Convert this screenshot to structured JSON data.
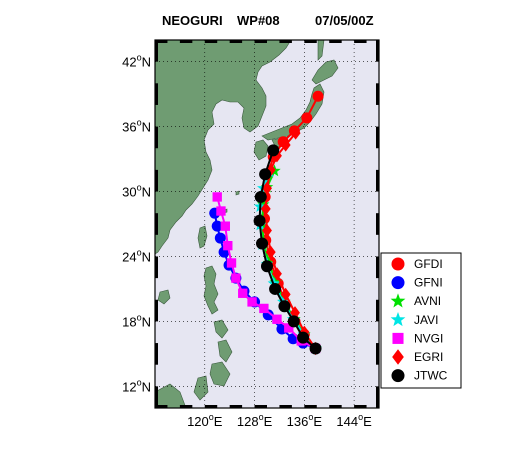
{
  "title": {
    "storm": "NEOGURI",
    "advisory": "WP#08",
    "datetime": "07/05/00Z"
  },
  "colors": {
    "ocean": "#e6e6f2",
    "land": "#6f9c72",
    "frame": "#000000"
  },
  "map": {
    "lon_range": [
      112,
      148
    ],
    "lat_range": [
      10,
      44
    ],
    "lon_ticks": [
      {
        "value": 120,
        "deg": "120",
        "hemi": "E"
      },
      {
        "value": 128,
        "deg": "128",
        "hemi": "E"
      },
      {
        "value": 136,
        "deg": "136",
        "hemi": "E"
      },
      {
        "value": 144,
        "deg": "144",
        "hemi": "E"
      }
    ],
    "lat_ticks": [
      {
        "value": 12,
        "deg": "12",
        "hemi": "N"
      },
      {
        "value": 18,
        "deg": "18",
        "hemi": "N"
      },
      {
        "value": 24,
        "deg": "24",
        "hemi": "N"
      },
      {
        "value": 30,
        "deg": "30",
        "hemi": "N"
      },
      {
        "value": 36,
        "deg": "36",
        "hemi": "N"
      },
      {
        "value": 42,
        "deg": "42",
        "hemi": "N"
      }
    ],
    "grid": "dotted"
  },
  "chart_data": {
    "type": "line",
    "xlabel": "",
    "ylabel": "",
    "xlim": [
      112,
      148
    ],
    "ylim": [
      10,
      44
    ],
    "series": [
      {
        "name": "GFDI",
        "color": "#ff0000",
        "marker": "circle",
        "points": [
          [
            137.8,
            15.5
          ],
          [
            136.0,
            16.8
          ],
          [
            134.5,
            18.0
          ],
          [
            133.0,
            19.6
          ],
          [
            131.8,
            21.5
          ],
          [
            130.6,
            23.5
          ],
          [
            129.8,
            25.5
          ],
          [
            129.6,
            27.5
          ],
          [
            129.7,
            29.5
          ],
          [
            130.1,
            31.5
          ],
          [
            131.0,
            33.2
          ],
          [
            132.6,
            34.6
          ],
          [
            134.4,
            35.6
          ],
          [
            136.4,
            36.8
          ],
          [
            138.2,
            38.8
          ]
        ]
      },
      {
        "name": "GFNI",
        "color": "#0000ff",
        "marker": "circle",
        "points": [
          [
            137.8,
            15.5
          ],
          [
            135.8,
            16.0
          ],
          [
            134.2,
            16.4
          ],
          [
            132.4,
            17.3
          ],
          [
            130.2,
            18.6
          ],
          [
            128.0,
            19.8
          ],
          [
            126.3,
            20.8
          ],
          [
            125.0,
            22.0
          ],
          [
            123.9,
            23.2
          ],
          [
            123.1,
            24.4
          ],
          [
            122.5,
            25.7
          ],
          [
            122.0,
            26.8
          ],
          [
            121.6,
            28.0
          ]
        ]
      },
      {
        "name": "AVNI",
        "color": "#00e000",
        "marker": "star",
        "points": [
          [
            137.8,
            15.5
          ],
          [
            136.0,
            16.8
          ],
          [
            134.4,
            18.2
          ],
          [
            132.8,
            19.8
          ],
          [
            131.4,
            21.6
          ],
          [
            130.3,
            23.4
          ],
          [
            129.5,
            25.2
          ],
          [
            129.2,
            27.0
          ],
          [
            129.4,
            28.8
          ],
          [
            130.0,
            30.4
          ],
          [
            131.2,
            31.9
          ]
        ]
      },
      {
        "name": "JAVI",
        "color": "#00e5e5",
        "marker": "star",
        "points": [
          [
            137.8,
            15.5
          ],
          [
            135.9,
            16.8
          ],
          [
            134.2,
            18.2
          ],
          [
            132.6,
            19.8
          ],
          [
            131.1,
            21.5
          ],
          [
            130.0,
            23.3
          ],
          [
            129.2,
            25.1
          ],
          [
            128.9,
            26.9
          ],
          [
            128.9,
            28.6
          ],
          [
            129.4,
            30.3
          ],
          [
            130.4,
            31.8
          ]
        ]
      },
      {
        "name": "NVGI",
        "color": "#ff00ff",
        "marker": "square",
        "points": [
          [
            137.8,
            15.5
          ],
          [
            135.5,
            16.2
          ],
          [
            133.5,
            17.4
          ],
          [
            131.6,
            18.2
          ],
          [
            129.5,
            19.2
          ],
          [
            127.6,
            19.8
          ],
          [
            126.1,
            20.6
          ],
          [
            125.0,
            22.0
          ],
          [
            124.3,
            23.4
          ],
          [
            123.7,
            25.0
          ],
          [
            123.3,
            26.8
          ],
          [
            122.6,
            28.2
          ],
          [
            122.0,
            29.5
          ]
        ]
      },
      {
        "name": "EGRI",
        "color": "#ff0000",
        "marker": "diamond",
        "points": [
          [
            137.8,
            15.5
          ],
          [
            136.0,
            17.0
          ],
          [
            134.5,
            18.8
          ],
          [
            133.0,
            20.5
          ],
          [
            131.6,
            22.4
          ],
          [
            130.6,
            24.4
          ],
          [
            130.0,
            26.4
          ],
          [
            129.8,
            28.4
          ],
          [
            130.0,
            30.3
          ],
          [
            130.6,
            32.0
          ],
          [
            131.6,
            33.3
          ],
          [
            133.0,
            34.3
          ],
          [
            134.6,
            35.4
          ]
        ]
      },
      {
        "name": "JTWC",
        "color": "#000000",
        "marker": "circle",
        "points": [
          [
            137.8,
            15.5
          ],
          [
            135.8,
            16.5
          ],
          [
            134.3,
            18.0
          ],
          [
            132.8,
            19.4
          ],
          [
            131.3,
            21.0
          ],
          [
            130.0,
            23.1
          ],
          [
            129.2,
            25.2
          ],
          [
            128.8,
            27.3
          ],
          [
            129.0,
            29.5
          ],
          [
            129.7,
            31.6
          ],
          [
            131.0,
            33.8
          ]
        ]
      }
    ]
  },
  "legend": {
    "items": [
      "GFDI",
      "GFNI",
      "AVNI",
      "JAVI",
      "NVGI",
      "EGRI",
      "JTWC"
    ]
  }
}
